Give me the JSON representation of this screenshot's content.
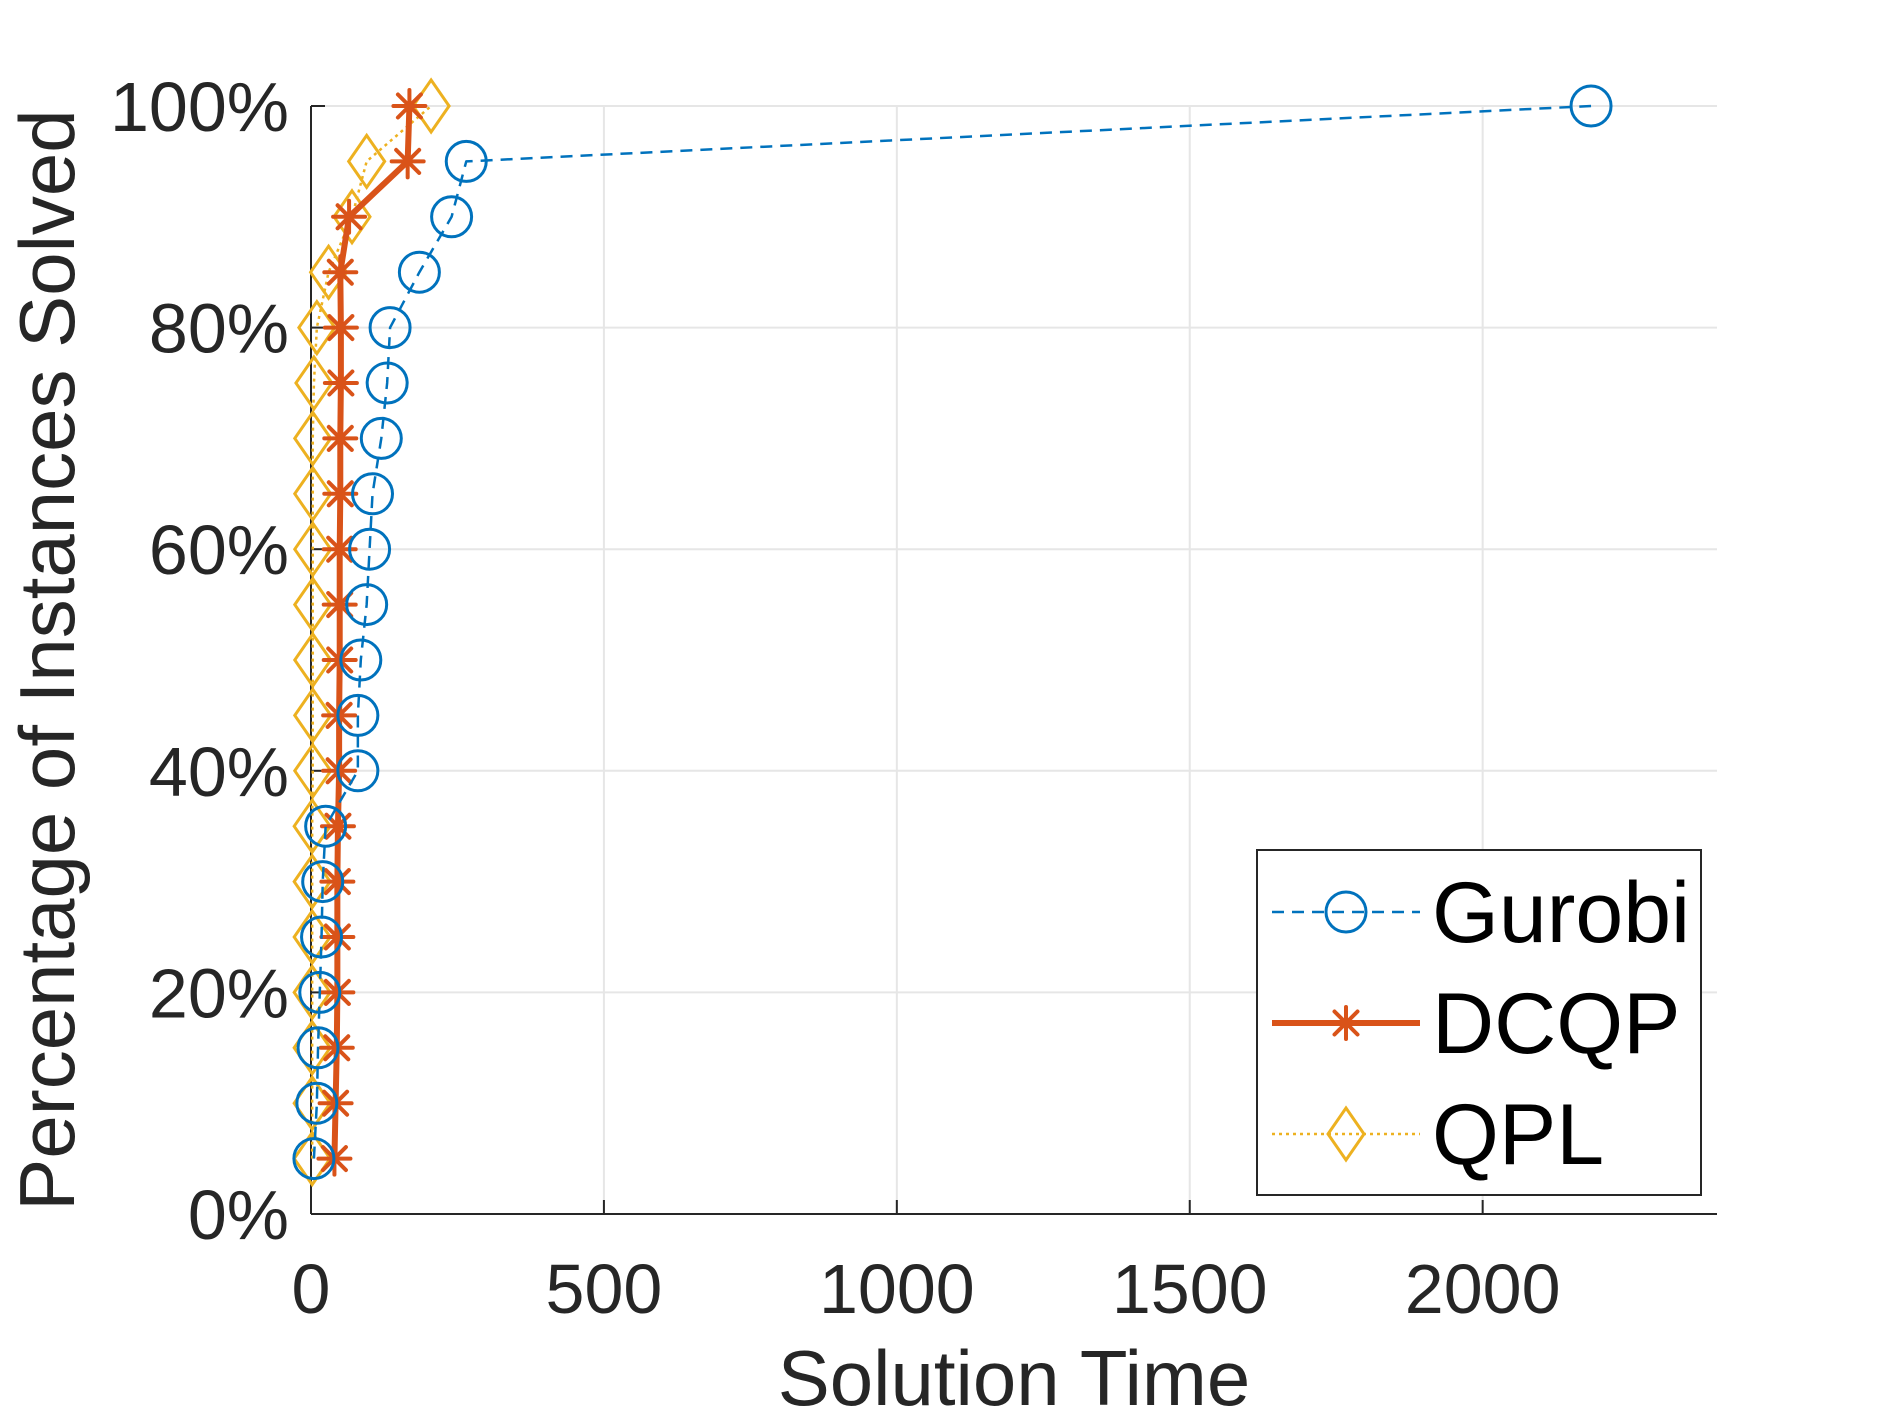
{
  "chart_data": {
    "type": "line",
    "xlabel": "Solution Time",
    "ylabel": "Percentage of Instances Solved",
    "xlim": [
      0,
      2400
    ],
    "ylim": [
      0,
      100
    ],
    "x_ticks": [
      0,
      500,
      1000,
      1500,
      2000
    ],
    "x_tick_labels": [
      "0",
      "500",
      "1000",
      "1500",
      "2000"
    ],
    "y_ticks": [
      0,
      20,
      40,
      60,
      80,
      100
    ],
    "y_tick_labels": [
      "0%",
      "20%",
      "40%",
      "60%",
      "80%",
      "100%"
    ],
    "grid": true,
    "legend_position": "bottom-right",
    "series": [
      {
        "name": "Gurobi",
        "color": "#0072BD",
        "line_style": "dashed",
        "marker": "circle",
        "points": [
          [
            5,
            5
          ],
          [
            10,
            10
          ],
          [
            12,
            15
          ],
          [
            15,
            20
          ],
          [
            18,
            25
          ],
          [
            20,
            30
          ],
          [
            25,
            35
          ],
          [
            80,
            40
          ],
          [
            80,
            45
          ],
          [
            85,
            50
          ],
          [
            95,
            55
          ],
          [
            100,
            60
          ],
          [
            105,
            65
          ],
          [
            120,
            70
          ],
          [
            130,
            75
          ],
          [
            135,
            80
          ],
          [
            185,
            85
          ],
          [
            240,
            90
          ],
          [
            265,
            95
          ],
          [
            2185,
            100
          ]
        ]
      },
      {
        "name": "DCQP",
        "color": "#D95319",
        "line_style": "solid",
        "marker": "asterisk",
        "points": [
          [
            40,
            5
          ],
          [
            42,
            10
          ],
          [
            44,
            15
          ],
          [
            45,
            20
          ],
          [
            45,
            25
          ],
          [
            45,
            30
          ],
          [
            46,
            35
          ],
          [
            48,
            40
          ],
          [
            48,
            45
          ],
          [
            49,
            50
          ],
          [
            49,
            55
          ],
          [
            49,
            60
          ],
          [
            50,
            65
          ],
          [
            50,
            70
          ],
          [
            51,
            75
          ],
          [
            51,
            80
          ],
          [
            50,
            85
          ],
          [
            65,
            90
          ],
          [
            165,
            95
          ],
          [
            168,
            100
          ]
        ]
      },
      {
        "name": "QPL",
        "color": "#EDB120",
        "line_style": "dotted",
        "marker": "diamond",
        "points": [
          [
            2,
            5
          ],
          [
            2,
            10
          ],
          [
            2,
            15
          ],
          [
            2,
            20
          ],
          [
            2,
            25
          ],
          [
            2,
            30
          ],
          [
            2,
            35
          ],
          [
            3,
            40
          ],
          [
            3,
            45
          ],
          [
            3,
            50
          ],
          [
            3,
            55
          ],
          [
            3,
            60
          ],
          [
            3,
            65
          ],
          [
            3,
            70
          ],
          [
            5,
            75
          ],
          [
            10,
            80
          ],
          [
            30,
            85
          ],
          [
            70,
            90
          ],
          [
            95,
            95
          ],
          [
            205,
            100
          ]
        ]
      }
    ]
  }
}
